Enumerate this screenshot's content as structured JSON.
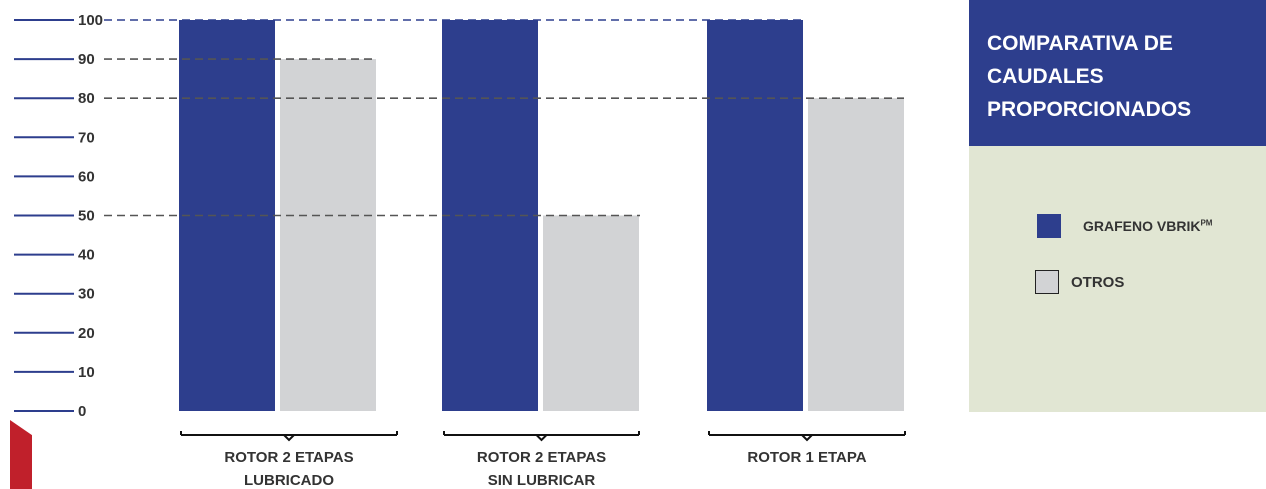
{
  "chart_data": {
    "type": "bar",
    "categories": [
      [
        "ROTOR 2 ETAPAS",
        "LUBRICADO"
      ],
      [
        "ROTOR 2 ETAPAS",
        "SIN LUBRICAR"
      ],
      [
        "ROTOR 1 ETAPA"
      ]
    ],
    "series": [
      {
        "name": "GRAFENO VBRIK",
        "name_superscript": "PM",
        "color": "#2d3e8d",
        "values": [
          100,
          100,
          100
        ]
      },
      {
        "name": "OTROS",
        "color": "#d2d3d5",
        "values": [
          90,
          50,
          80
        ]
      }
    ],
    "yticks": [
      "0",
      "10",
      "20",
      "30",
      "40",
      "50",
      "60",
      "70",
      "80",
      "90",
      "100"
    ],
    "ylim": [
      0,
      100
    ],
    "reference_lines": [
      100,
      90,
      80,
      50
    ],
    "legend_title": "COMPARATIVA DE CAUDALES PROPORCIONADOS",
    "legend_placement": "right",
    "grid": false,
    "colors": {
      "axis_line": "#2d3e8d",
      "dashed_line": "#555555",
      "legend_header_bg": "#2d3e8d",
      "legend_body_bg": "#e1e6d3",
      "accent_red": "#c0202b"
    }
  }
}
